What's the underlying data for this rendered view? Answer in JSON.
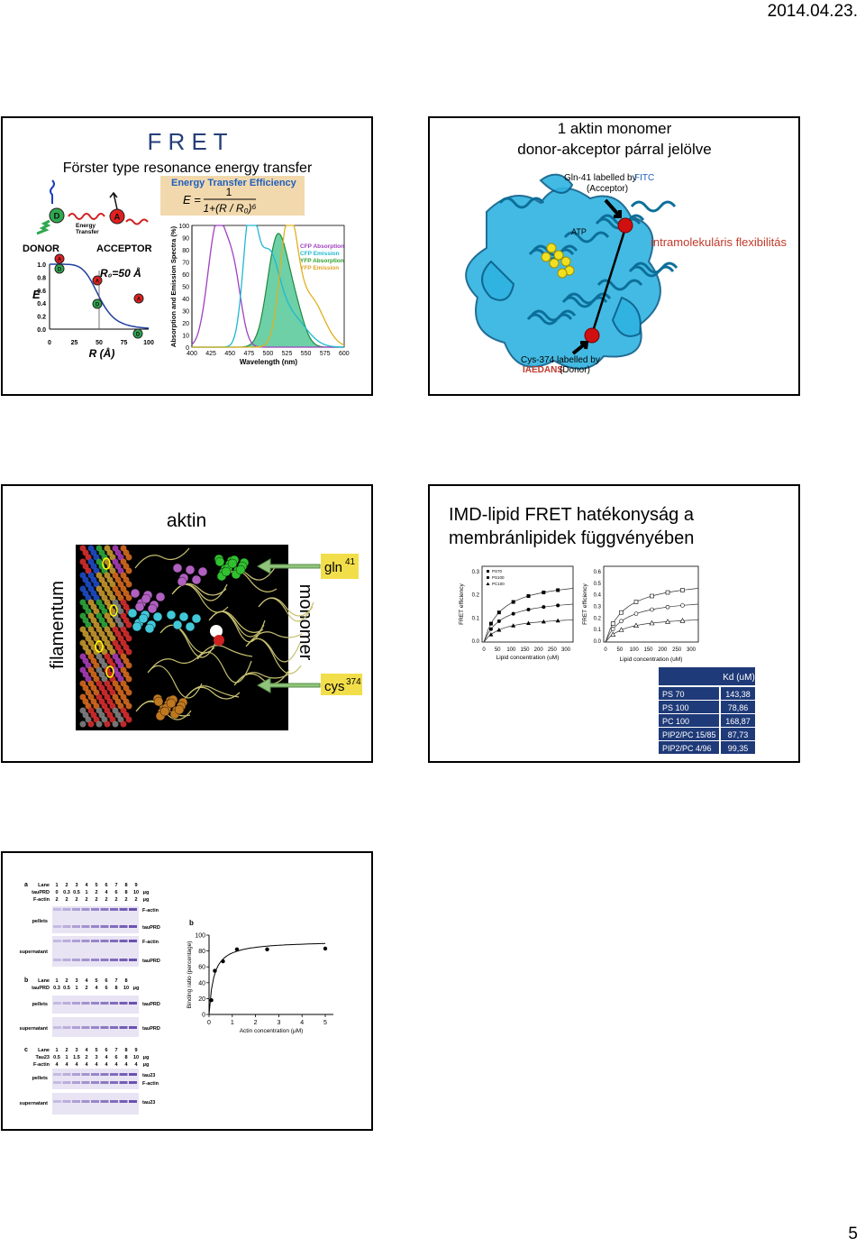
{
  "header": {
    "date": "2014.04.23."
  },
  "slide1": {
    "title": "F R E T",
    "subtitle": "Förster type resonance energy transfer",
    "efficiency": {
      "title": "Energy Transfer Efficiency",
      "lhs": "E =",
      "numerator": "1",
      "denominator": "1+(R / R₀)⁶"
    },
    "donor": "DONOR",
    "acceptor": "ACCEPTOR",
    "energy_transfer": [
      "Energy",
      "Transfer"
    ],
    "donor_mark": "D",
    "acceptor_mark": "A",
    "r0": "R₀=50 Å",
    "e_label": "E",
    "r_label": "R (Å)",
    "e_ticks": [
      "1.0",
      "0.8",
      "0.6",
      "0.4",
      "0.2",
      "0.0"
    ],
    "r_ticks": [
      "0",
      "25",
      "50",
      "75",
      "100"
    ],
    "spectra_y_label": "Absorption and Emission Spectra (%)",
    "spectra_x_label": "Wavelength (nm)",
    "spectra_y_ticks": [
      "100",
      "90",
      "80",
      "70",
      "60",
      "50",
      "40",
      "30",
      "20",
      "10",
      "0"
    ],
    "spectra_x_ticks": [
      "400",
      "425",
      "450",
      "475",
      "500",
      "525",
      "550",
      "575",
      "600"
    ],
    "legend": [
      "CFP Absorption",
      "CFP Emission",
      "YFP Absorption",
      "YFP Emission"
    ]
  },
  "slide2": {
    "title_lines": [
      "1 aktin monomer",
      "donor-akceptor párral jelölve"
    ],
    "gln_label": "Gln-41 labelled by",
    "gln_dye": "FITC",
    "gln_role": "(Acceptor)",
    "atp": "ATP",
    "annotation": "intramolekuláris flexibilitás",
    "cys_label": "Cys-374 labelled by",
    "cys_dye": "IAEDANS",
    "cys_role": "(Donor)"
  },
  "slide3": {
    "title": "aktin",
    "filament": "filamentum",
    "monomer": "monomer",
    "gln": {
      "name": "gln",
      "sup": "41"
    },
    "cys": {
      "name": "cys",
      "sup": "374"
    }
  },
  "slide4": {
    "title_lines": [
      "IMD-lipid FRET hatékonyság a",
      "membránlipidek függvényében"
    ],
    "plots": [
      {
        "y_label": "FRET efficiency",
        "x_label": "Lipid concentration (uM)",
        "y_ticks": [
          "0.3",
          "0.2",
          "0.1",
          "0.0"
        ],
        "x_ticks": [
          "0",
          "50",
          "100",
          "150",
          "200",
          "250",
          "300"
        ],
        "legend": [
          "PS70",
          "PS100",
          "PC100"
        ]
      },
      {
        "y_label": "FRET efficiency",
        "x_label": "Lipid concentration (uM)",
        "y_ticks": [
          "0.6",
          "0.5",
          "0.4",
          "0.3",
          "0.2",
          "0.1",
          "0.0"
        ],
        "x_ticks": [
          "0",
          "50",
          "100",
          "150",
          "200",
          "250",
          "300"
        ]
      }
    ],
    "table": {
      "header": "Kd (uM)",
      "rows": [
        [
          "PS 70",
          "143,38"
        ],
        [
          "PS 100",
          "78,86"
        ],
        [
          "PC 100",
          "168,87"
        ],
        [
          "PIP2/PC 15/85",
          "87,73"
        ],
        [
          "PIP2/PC 4/96",
          "99,35"
        ]
      ]
    }
  },
  "slide5": {
    "gel": [
      {
        "letter": "a",
        "rows": [
          [
            "Lane",
            "1",
            "2",
            "3",
            "4",
            "5",
            "6",
            "7",
            "8",
            "9"
          ],
          [
            "tauPRD",
            "0",
            "0.3",
            "0.5",
            "1",
            "2",
            "4",
            "6",
            "8",
            "10",
            "μg"
          ],
          [
            "F-actin",
            "2",
            "2",
            "2",
            "2",
            "2",
            "2",
            "2",
            "2",
            "2",
            "μg"
          ]
        ],
        "sections": [
          "pellets",
          "supernatant"
        ],
        "bands": [
          "F-actin",
          "tauPRD",
          "F-actin",
          "tauPRD"
        ]
      },
      {
        "letter": "b",
        "rows": [
          [
            "Lane",
            "1",
            "2",
            "3",
            "4",
            "5",
            "6",
            "7",
            "8"
          ],
          [
            "tauPRD",
            "0.3",
            "0.5",
            "1",
            "2",
            "4",
            "6",
            "8",
            "10",
            "μg"
          ]
        ],
        "sections": [
          "pellets",
          "supernatant"
        ],
        "bands": [
          "tauPRD",
          "tauPRD"
        ]
      },
      {
        "letter": "c",
        "rows": [
          [
            "Lane",
            "1",
            "2",
            "3",
            "4",
            "5",
            "6",
            "7",
            "8",
            "9"
          ],
          [
            "Tau23",
            "0.5",
            "1",
            "1.5",
            "2",
            "3",
            "4",
            "6",
            "8",
            "10",
            "μg"
          ],
          [
            "F-actin",
            "4",
            "4",
            "4",
            "4",
            "4",
            "4",
            "4",
            "4",
            "4",
            "μg"
          ]
        ],
        "sections": [
          "pellets",
          "supernatant"
        ],
        "bands": [
          "tau23",
          "F-actin",
          "tau23"
        ]
      }
    ],
    "plot": {
      "letter": "b",
      "y_label": "Binding ratio (percentage)",
      "x_label": "Actin concentration (μM)",
      "y_ticks": [
        "100",
        "80",
        "60",
        "40",
        "20",
        "0"
      ],
      "x_ticks": [
        "0",
        "1",
        "2",
        "3",
        "4",
        "5"
      ]
    }
  },
  "footer": {
    "page": "5"
  }
}
